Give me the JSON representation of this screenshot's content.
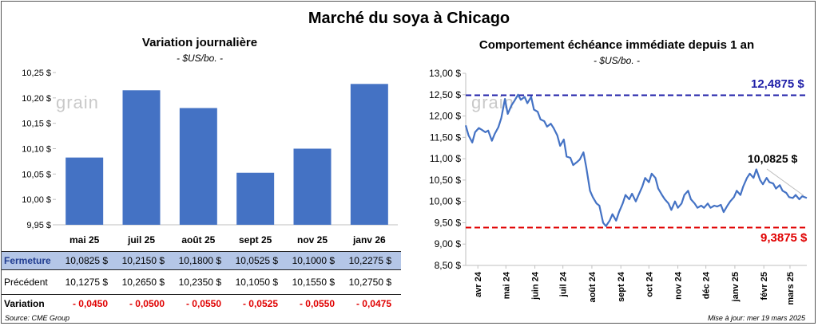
{
  "title": "Marché du soya à Chicago",
  "left": {
    "title": "Variation journalière",
    "unit": "- $US/bo. -",
    "y_ticks": [
      "9,95 $",
      "10,00 $",
      "10,05 $",
      "10,10 $",
      "10,15 $",
      "10,20 $",
      "10,25 $"
    ]
  },
  "right": {
    "title": "Comportement échéance immédiate depuis 1 an",
    "unit": "- $US/bo. -",
    "high_label": "12,4875 $",
    "low_label": "9,3875 $",
    "last_label": "10,0825 $",
    "y_ticks": [
      "8,50 $",
      "9,00 $",
      "9,50 $",
      "10,00 $",
      "10,50 $",
      "11,00 $",
      "11,50 $",
      "12,00 $",
      "12,50 $",
      "13,00 $"
    ],
    "x_ticks": [
      "avr 24",
      "mai 24",
      "juin 24",
      "juil 24",
      "août 24",
      "sept 24",
      "oct 24",
      "nov 24",
      "déc 24",
      "janv 25",
      "févr 25",
      "mars 25"
    ]
  },
  "table": {
    "row_close_label": "Fermeture",
    "row_prev_label": "Précédent",
    "row_var_label": "Variation",
    "close": [
      "10,0825  $",
      "10,2150  $",
      "10,1800  $",
      "10,0525  $",
      "10,1000  $",
      "10,2275  $"
    ],
    "prev": [
      "10,1275  $",
      "10,2650  $",
      "10,2350  $",
      "10,1050  $",
      "10,1550  $",
      "10,2750  $"
    ],
    "var": [
      "- 0,0450",
      "- 0,0500",
      "- 0,0550",
      "- 0,0525",
      "- 0,0550",
      "- 0,0475"
    ]
  },
  "watermark": "grain",
  "source": "Source: CME Group",
  "updated": "Mise à jour: mer 19 mars 2025",
  "colors": {
    "bar": "#4472c4",
    "line": "#4472c4",
    "high": "#1f1fa8",
    "low": "#e00000"
  },
  "chart_data": [
    {
      "type": "bar",
      "title": "Variation journalière",
      "categories": [
        "mai 25",
        "juil 25",
        "août 25",
        "sept 25",
        "nov 25",
        "janv 26"
      ],
      "values": [
        10.0825,
        10.215,
        10.18,
        10.0525,
        10.1,
        10.2275
      ],
      "ylim": [
        9.95,
        10.25
      ],
      "grid": false
    },
    {
      "type": "line",
      "title": "Comportement échéance immédiate depuis 1 an",
      "ylim": [
        8.5,
        13.0
      ],
      "xlim": [
        "2024-03-19",
        "2025-03-19"
      ],
      "high": 12.4875,
      "low": 9.3875,
      "last": 10.0825,
      "series": [
        {
          "points": [
            [
              "2024-03-19",
              11.78
            ],
            [
              "2024-03-22",
              11.55
            ],
            [
              "2024-03-26",
              11.38
            ],
            [
              "2024-03-29",
              11.62
            ],
            [
              "2024-04-02",
              11.72
            ],
            [
              "2024-04-05",
              11.68
            ],
            [
              "2024-04-09",
              11.62
            ],
            [
              "2024-04-12",
              11.66
            ],
            [
              "2024-04-16",
              11.42
            ],
            [
              "2024-04-19",
              11.58
            ],
            [
              "2024-04-23",
              11.74
            ],
            [
              "2024-04-26",
              11.95
            ],
            [
              "2024-04-30",
              12.4
            ],
            [
              "2024-05-03",
              12.05
            ],
            [
              "2024-05-07",
              12.25
            ],
            [
              "2024-05-10",
              12.35
            ],
            [
              "2024-05-14",
              12.5
            ],
            [
              "2024-05-17",
              12.38
            ],
            [
              "2024-05-21",
              12.45
            ],
            [
              "2024-05-24",
              12.3
            ],
            [
              "2024-05-28",
              12.45
            ],
            [
              "2024-05-31",
              12.15
            ],
            [
              "2024-06-04",
              12.1
            ],
            [
              "2024-06-07",
              11.92
            ],
            [
              "2024-06-11",
              11.88
            ],
            [
              "2024-06-14",
              11.75
            ],
            [
              "2024-06-18",
              11.82
            ],
            [
              "2024-06-21",
              11.72
            ],
            [
              "2024-06-25",
              11.55
            ],
            [
              "2024-06-28",
              11.3
            ],
            [
              "2024-07-02",
              11.45
            ],
            [
              "2024-07-05",
              11.05
            ],
            [
              "2024-07-09",
              11.02
            ],
            [
              "2024-07-12",
              10.85
            ],
            [
              "2024-07-16",
              10.92
            ],
            [
              "2024-07-19",
              10.98
            ],
            [
              "2024-07-23",
              11.15
            ],
            [
              "2024-07-26",
              10.8
            ],
            [
              "2024-07-30",
              10.25
            ],
            [
              "2024-08-02",
              10.1
            ],
            [
              "2024-08-06",
              9.95
            ],
            [
              "2024-08-09",
              9.9
            ],
            [
              "2024-08-13",
              9.5
            ],
            [
              "2024-08-16",
              9.42
            ],
            [
              "2024-08-20",
              9.55
            ],
            [
              "2024-08-23",
              9.7
            ],
            [
              "2024-08-27",
              9.55
            ],
            [
              "2024-08-30",
              9.75
            ],
            [
              "2024-09-03",
              9.95
            ],
            [
              "2024-09-06",
              10.15
            ],
            [
              "2024-09-10",
              10.05
            ],
            [
              "2024-09-13",
              10.18
            ],
            [
              "2024-09-17",
              10.0
            ],
            [
              "2024-09-20",
              10.15
            ],
            [
              "2024-09-24",
              10.35
            ],
            [
              "2024-09-27",
              10.55
            ],
            [
              "2024-10-01",
              10.45
            ],
            [
              "2024-10-04",
              10.65
            ],
            [
              "2024-10-08",
              10.55
            ],
            [
              "2024-10-11",
              10.3
            ],
            [
              "2024-10-15",
              10.15
            ],
            [
              "2024-10-18",
              10.05
            ],
            [
              "2024-10-22",
              9.95
            ],
            [
              "2024-10-25",
              9.8
            ],
            [
              "2024-10-29",
              10.0
            ],
            [
              "2024-11-01",
              9.85
            ],
            [
              "2024-11-05",
              9.95
            ],
            [
              "2024-11-08",
              10.15
            ],
            [
              "2024-11-12",
              10.25
            ],
            [
              "2024-11-15",
              10.05
            ],
            [
              "2024-11-19",
              9.95
            ],
            [
              "2024-11-22",
              9.85
            ],
            [
              "2024-11-26",
              9.9
            ],
            [
              "2024-11-29",
              9.85
            ],
            [
              "2024-12-03",
              9.95
            ],
            [
              "2024-12-06",
              9.85
            ],
            [
              "2024-12-10",
              9.9
            ],
            [
              "2024-12-13",
              9.88
            ],
            [
              "2024-12-17",
              9.92
            ],
            [
              "2024-12-20",
              9.75
            ],
            [
              "2024-12-24",
              9.9
            ],
            [
              "2024-12-27",
              10.0
            ],
            [
              "2024-12-31",
              10.1
            ],
            [
              "2025-01-03",
              10.25
            ],
            [
              "2025-01-07",
              10.15
            ],
            [
              "2025-01-10",
              10.35
            ],
            [
              "2025-01-14",
              10.55
            ],
            [
              "2025-01-17",
              10.65
            ],
            [
              "2025-01-21",
              10.55
            ],
            [
              "2025-01-24",
              10.75
            ],
            [
              "2025-01-28",
              10.5
            ],
            [
              "2025-01-31",
              10.4
            ],
            [
              "2025-02-04",
              10.55
            ],
            [
              "2025-02-07",
              10.45
            ],
            [
              "2025-02-11",
              10.42
            ],
            [
              "2025-02-14",
              10.3
            ],
            [
              "2025-02-18",
              10.38
            ],
            [
              "2025-02-21",
              10.25
            ],
            [
              "2025-02-25",
              10.2
            ],
            [
              "2025-02-28",
              10.1
            ],
            [
              "2025-03-04",
              10.08
            ],
            [
              "2025-03-07",
              10.15
            ],
            [
              "2025-03-11",
              10.05
            ],
            [
              "2025-03-14",
              10.12
            ],
            [
              "2025-03-19",
              10.08
            ]
          ]
        }
      ]
    }
  ]
}
